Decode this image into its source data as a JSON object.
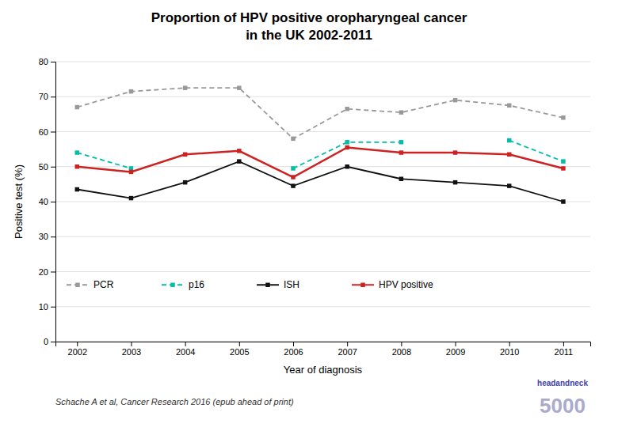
{
  "chart_data": {
    "type": "line",
    "title": "Proportion of HPV positive oropharyngeal cancer",
    "subtitle": "in the UK 2002-2011",
    "xlabel": "Year of diagnosis",
    "ylabel": "Positive test (%)",
    "x": [
      2002,
      2003,
      2004,
      2005,
      2006,
      2007,
      2008,
      2009,
      2010,
      2011
    ],
    "series": [
      {
        "name": "PCR",
        "color": "#999999",
        "line_style": "dashed",
        "marker": "square",
        "values": [
          67,
          71.5,
          72.5,
          72.5,
          58,
          66.5,
          65.5,
          69,
          67.5,
          64
        ]
      },
      {
        "name": "p16",
        "color": "#00bfa5",
        "line_style": "dashed",
        "marker": "square",
        "values": [
          54,
          49.5,
          null,
          null,
          49.5,
          57,
          57,
          null,
          57.5,
          51.5
        ]
      },
      {
        "name": "ISH",
        "color": "#111111",
        "line_style": "solid",
        "marker": "square",
        "values": [
          43.5,
          41,
          45.5,
          51.5,
          44.5,
          50,
          46.5,
          45.5,
          44.5,
          40
        ]
      },
      {
        "name": "HPV positive",
        "color": "#cc2222",
        "line_style": "solid",
        "marker": "square",
        "values": [
          50,
          48.5,
          53.5,
          54.5,
          47,
          55.5,
          54,
          54,
          53.5,
          49.5
        ]
      }
    ],
    "xlim": [
      2001.6,
      2011.5
    ],
    "xticks": [
      2002,
      2003,
      2004,
      2005,
      2006,
      2007,
      2008,
      2009,
      2010,
      2011
    ],
    "ylim": [
      0,
      80
    ],
    "yticks": [
      0,
      10,
      20,
      30,
      40,
      50,
      60,
      70,
      80
    ],
    "grid": true,
    "legend": "lower left",
    "annotations": [
      "Schache A et al, Cancer Research 2016 (epub ahead of print)",
      "headandneck",
      "5000"
    ]
  }
}
